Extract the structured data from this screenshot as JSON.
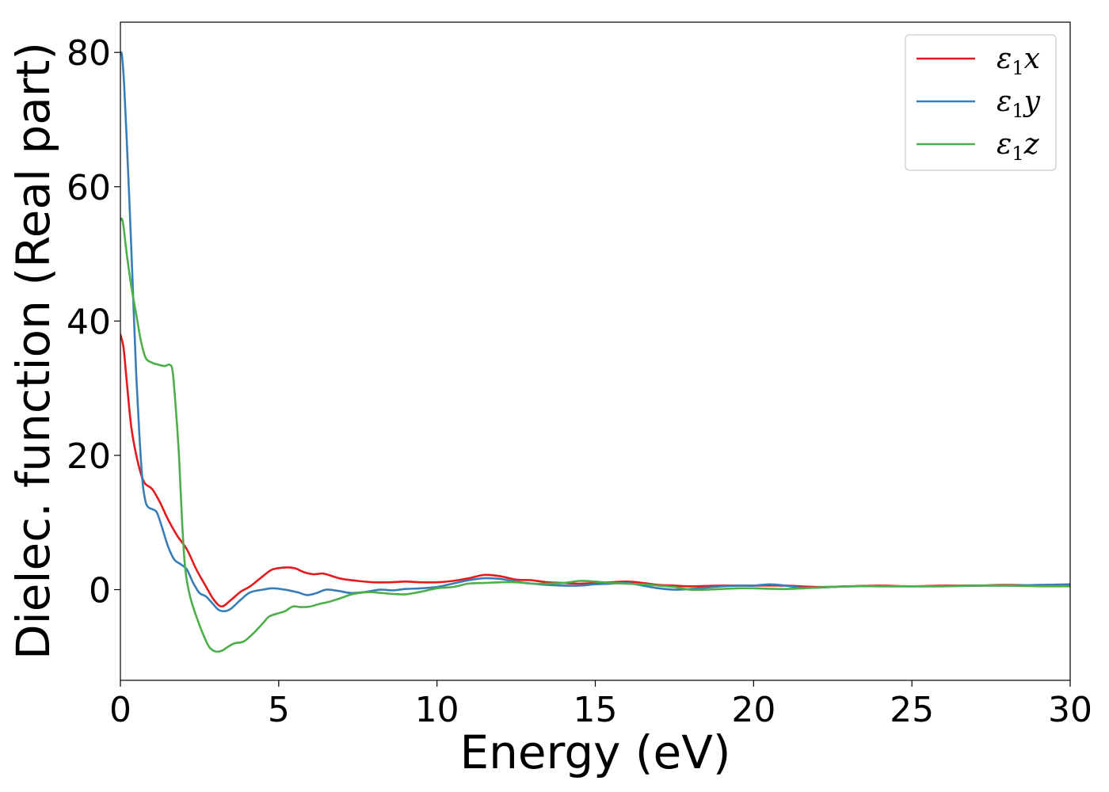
{
  "chart_data": {
    "type": "line",
    "xlabel": "Energy (eV)",
    "ylabel": "Dielec. function (Real part)",
    "xlim": [
      0,
      30
    ],
    "ylim": [
      -13.5,
      84.5
    ],
    "xticks": [
      0,
      5,
      10,
      15,
      20,
      25,
      30
    ],
    "yticks": [
      0,
      20,
      40,
      60,
      80
    ],
    "grid": false,
    "legend_position": "top-right",
    "series": [
      {
        "name": "ε1x",
        "legend_base": "ε",
        "legend_sub": "1",
        "legend_var": "x",
        "color": "#e41a1c",
        "points": [
          [
            0,
            38
          ],
          [
            0.1,
            36
          ],
          [
            0.2,
            31
          ],
          [
            0.35,
            24
          ],
          [
            0.55,
            19
          ],
          [
            0.75,
            16
          ],
          [
            1.0,
            15
          ],
          [
            1.25,
            13
          ],
          [
            1.5,
            10.5
          ],
          [
            1.8,
            8
          ],
          [
            2.1,
            6
          ],
          [
            2.4,
            3
          ],
          [
            2.7,
            0.5
          ],
          [
            2.95,
            -1.5
          ],
          [
            3.2,
            -2.5
          ],
          [
            3.5,
            -1.5
          ],
          [
            3.8,
            -0.3
          ],
          [
            4.1,
            0.5
          ],
          [
            4.5,
            2
          ],
          [
            4.8,
            3
          ],
          [
            5.2,
            3.3
          ],
          [
            5.5,
            3.2
          ],
          [
            5.8,
            2.6
          ],
          [
            6.1,
            2.3
          ],
          [
            6.4,
            2.4
          ],
          [
            6.7,
            2
          ],
          [
            7.0,
            1.6
          ],
          [
            7.5,
            1.3
          ],
          [
            8.0,
            1.1
          ],
          [
            8.5,
            1.1
          ],
          [
            9.0,
            1.2
          ],
          [
            9.5,
            1.1
          ],
          [
            10.0,
            1.1
          ],
          [
            10.5,
            1.3
          ],
          [
            11.0,
            1.7
          ],
          [
            11.5,
            2.2
          ],
          [
            12.0,
            2
          ],
          [
            12.5,
            1.5
          ],
          [
            13.0,
            1.4
          ],
          [
            13.5,
            1.1
          ],
          [
            14.0,
            1
          ],
          [
            14.5,
            0.9
          ],
          [
            15.0,
            1
          ],
          [
            15.5,
            1.1
          ],
          [
            16.0,
            1.2
          ],
          [
            16.5,
            1
          ],
          [
            17.0,
            0.7
          ],
          [
            17.5,
            0.6
          ],
          [
            18.0,
            0.5
          ],
          [
            19.0,
            0.6
          ],
          [
            20.0,
            0.6
          ],
          [
            21.0,
            0.6
          ],
          [
            22.0,
            0.4
          ],
          [
            23.0,
            0.5
          ],
          [
            24.0,
            0.6
          ],
          [
            25.0,
            0.5
          ],
          [
            26.0,
            0.6
          ],
          [
            27.0,
            0.6
          ],
          [
            28.0,
            0.7
          ],
          [
            29.0,
            0.6
          ],
          [
            30.0,
            0.6
          ]
        ]
      },
      {
        "name": "ε1y",
        "legend_base": "ε",
        "legend_sub": "1",
        "legend_var": "y",
        "color": "#377eb8",
        "points": [
          [
            0,
            80
          ],
          [
            0.05,
            79.5
          ],
          [
            0.12,
            75
          ],
          [
            0.2,
            67
          ],
          [
            0.3,
            56
          ],
          [
            0.4,
            44
          ],
          [
            0.5,
            32
          ],
          [
            0.6,
            23
          ],
          [
            0.7,
            16
          ],
          [
            0.8,
            13
          ],
          [
            0.9,
            12.2
          ],
          [
            1.0,
            12
          ],
          [
            1.15,
            11.5
          ],
          [
            1.3,
            9.5
          ],
          [
            1.5,
            6.5
          ],
          [
            1.7,
            4.5
          ],
          [
            1.9,
            3.8
          ],
          [
            2.1,
            3
          ],
          [
            2.3,
            1
          ],
          [
            2.5,
            -0.5
          ],
          [
            2.7,
            -1
          ],
          [
            2.9,
            -2
          ],
          [
            3.1,
            -3
          ],
          [
            3.3,
            -3.2
          ],
          [
            3.5,
            -2.8
          ],
          [
            3.8,
            -1.5
          ],
          [
            4.1,
            -0.4
          ],
          [
            4.5,
            0
          ],
          [
            4.8,
            0.2
          ],
          [
            5.2,
            0
          ],
          [
            5.6,
            -0.4
          ],
          [
            5.9,
            -0.8
          ],
          [
            6.2,
            -0.5
          ],
          [
            6.5,
            0
          ],
          [
            6.9,
            -0.2
          ],
          [
            7.3,
            -0.5
          ],
          [
            7.8,
            -0.3
          ],
          [
            8.2,
            0
          ],
          [
            8.6,
            -0.1
          ],
          [
            9.0,
            0.1
          ],
          [
            9.5,
            0.2
          ],
          [
            10.0,
            0.4
          ],
          [
            10.5,
            0.9
          ],
          [
            11.0,
            1.4
          ],
          [
            11.5,
            1.7
          ],
          [
            12.0,
            1.6
          ],
          [
            12.5,
            1.2
          ],
          [
            13.0,
            0.9
          ],
          [
            13.5,
            0.7
          ],
          [
            14.0,
            0.6
          ],
          [
            14.5,
            0.6
          ],
          [
            15.0,
            0.8
          ],
          [
            15.5,
            0.9
          ],
          [
            16.0,
            1
          ],
          [
            16.5,
            0.6
          ],
          [
            17.0,
            0.2
          ],
          [
            17.5,
            0
          ],
          [
            18.0,
            0.1
          ],
          [
            18.5,
            0.3
          ],
          [
            19.0,
            0.5
          ],
          [
            19.5,
            0.6
          ],
          [
            20.0,
            0.6
          ],
          [
            20.5,
            0.8
          ],
          [
            21.0,
            0.6
          ],
          [
            21.5,
            0.3
          ],
          [
            22.0,
            0.3
          ],
          [
            23.0,
            0.5
          ],
          [
            24.0,
            0.5
          ],
          [
            25.0,
            0.5
          ],
          [
            26.0,
            0.5
          ],
          [
            27.0,
            0.6
          ],
          [
            28.0,
            0.6
          ],
          [
            29.0,
            0.7
          ],
          [
            30.0,
            0.8
          ]
        ]
      },
      {
        "name": "ε1z",
        "legend_base": "ε",
        "legend_sub": "1",
        "legend_var": "z",
        "color": "#4daf4a",
        "points": [
          [
            0,
            55
          ],
          [
            0.05,
            55.2
          ],
          [
            0.1,
            54
          ],
          [
            0.2,
            50
          ],
          [
            0.35,
            45
          ],
          [
            0.5,
            41
          ],
          [
            0.65,
            37
          ],
          [
            0.8,
            34.5
          ],
          [
            1.0,
            33.8
          ],
          [
            1.2,
            33.5
          ],
          [
            1.4,
            33.3
          ],
          [
            1.55,
            33.5
          ],
          [
            1.65,
            32.5
          ],
          [
            1.75,
            27
          ],
          [
            1.85,
            20
          ],
          [
            1.95,
            10
          ],
          [
            2.05,
            3
          ],
          [
            2.2,
            -1
          ],
          [
            2.4,
            -4
          ],
          [
            2.6,
            -6.5
          ],
          [
            2.8,
            -8.5
          ],
          [
            3.0,
            -9.2
          ],
          [
            3.2,
            -9.1
          ],
          [
            3.4,
            -8.5
          ],
          [
            3.6,
            -8
          ],
          [
            3.9,
            -7.7
          ],
          [
            4.2,
            -6.5
          ],
          [
            4.5,
            -5
          ],
          [
            4.7,
            -4
          ],
          [
            5.0,
            -3.5
          ],
          [
            5.2,
            -3.2
          ],
          [
            5.45,
            -2.5
          ],
          [
            5.7,
            -2.6
          ],
          [
            6.0,
            -2.5
          ],
          [
            6.3,
            -2.1
          ],
          [
            6.6,
            -1.8
          ],
          [
            7.0,
            -1.2
          ],
          [
            7.3,
            -0.7
          ],
          [
            7.7,
            -0.4
          ],
          [
            8.0,
            -0.4
          ],
          [
            8.5,
            -0.6
          ],
          [
            9.0,
            -0.7
          ],
          [
            9.5,
            -0.3
          ],
          [
            10.0,
            0.2
          ],
          [
            10.5,
            0.4
          ],
          [
            11.0,
            0.9
          ],
          [
            11.5,
            1
          ],
          [
            12.0,
            1.1
          ],
          [
            12.5,
            1.1
          ],
          [
            13.0,
            0.9
          ],
          [
            13.5,
            0.9
          ],
          [
            14.0,
            1
          ],
          [
            14.5,
            1.3
          ],
          [
            15.0,
            1.2
          ],
          [
            15.5,
            1
          ],
          [
            16.0,
            0.9
          ],
          [
            16.5,
            0.8
          ],
          [
            17.0,
            0.6
          ],
          [
            17.5,
            0.4
          ],
          [
            18.0,
            0
          ],
          [
            18.5,
            0
          ],
          [
            19.0,
            0.1
          ],
          [
            19.5,
            0.2
          ],
          [
            20.0,
            0.2
          ],
          [
            21.0,
            0.1
          ],
          [
            22.0,
            0.3
          ],
          [
            23.0,
            0.5
          ],
          [
            24.0,
            0.5
          ],
          [
            25.0,
            0.5
          ],
          [
            26.0,
            0.5
          ],
          [
            27.0,
            0.6
          ],
          [
            28.0,
            0.6
          ],
          [
            29.0,
            0.5
          ],
          [
            30.0,
            0.5
          ]
        ]
      }
    ]
  }
}
